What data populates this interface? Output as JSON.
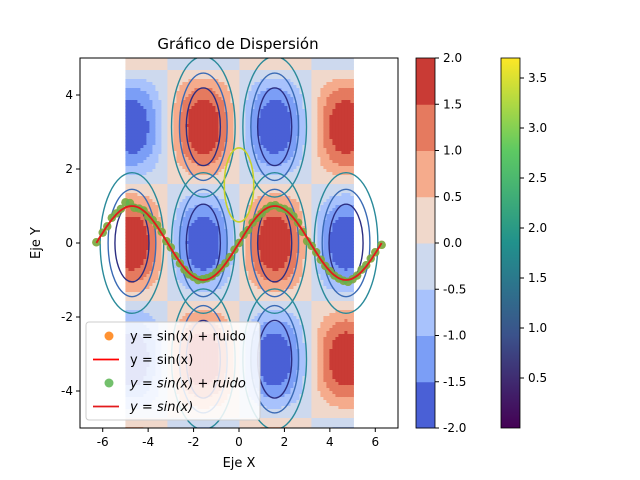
{
  "chart_data": {
    "type": "scatter",
    "title": "Gráfico de Dispersión",
    "xlabel": "Eje X",
    "ylabel": "Eje Y",
    "xlim": [
      -7,
      7
    ],
    "ylim": [
      -5,
      5
    ],
    "x_ticks": [
      -6,
      -4,
      -2,
      0,
      2,
      4,
      6
    ],
    "y_ticks": [
      -4,
      -2,
      0,
      2,
      4
    ],
    "contour_field": "sin(x)*cos(y)*2",
    "contour_x_range": [
      -5,
      5
    ],
    "contour_levels": [
      -2.0,
      -1.5,
      -1.0,
      -0.5,
      0.0,
      0.5,
      1.0,
      1.5,
      2.0
    ],
    "contour_colors": [
      "#4a60d6",
      "#7b9ef6",
      "#a8c2fc",
      "#cdd9ee",
      "#f0d8cb",
      "#f5ab8c",
      "#e57a5f",
      "#c93b35"
    ],
    "colorbar1": {
      "ticks": [
        "-2.0",
        "-1.5",
        "-1.0",
        "-0.5",
        "0.0",
        "0.5",
        "1.0",
        "1.5",
        "2.0"
      ]
    },
    "colorbar2": {
      "range": [
        0,
        3.7
      ],
      "ticks": [
        "0.5",
        "1.0",
        "1.5",
        "2.0",
        "2.5",
        "3.0",
        "3.5"
      ],
      "colors": [
        "#440154",
        "#3b528b",
        "#21918c",
        "#5ec962",
        "#fde725"
      ]
    },
    "series": [
      {
        "name": "y = sin(x) + ruido",
        "kind": "scatter",
        "color": "#ff7f0e",
        "x": [
          -6.28,
          -6.0,
          -5.8,
          -5.6,
          -5.4,
          -5.2,
          -5.0,
          -4.8,
          -4.6,
          -4.4,
          -4.2,
          -4.0,
          -3.8,
          -3.6,
          -3.4,
          -3.2,
          -3.0,
          -2.8,
          -2.6,
          -2.4,
          -2.2,
          -2.0,
          -1.8,
          -1.6,
          -1.4,
          -1.2,
          -1.0,
          -0.8,
          -0.6,
          -0.4,
          -0.2,
          0.0,
          0.2,
          0.4,
          0.6,
          0.8,
          1.0,
          1.2,
          1.4,
          1.6,
          1.8,
          2.0,
          2.2,
          2.4,
          2.6,
          2.8,
          3.0,
          3.2,
          3.4,
          3.6,
          3.8,
          4.0,
          4.2,
          4.4,
          4.6,
          4.8,
          5.0,
          5.2,
          5.4,
          5.6,
          5.8,
          6.0,
          6.28
        ],
        "y": [
          0.02,
          0.28,
          0.45,
          0.68,
          0.8,
          0.92,
          1.1,
          1.08,
          0.95,
          0.93,
          0.88,
          0.72,
          0.62,
          0.48,
          0.3,
          0.05,
          -0.12,
          -0.35,
          -0.55,
          -0.72,
          -0.85,
          -0.92,
          -1.0,
          -0.98,
          -0.95,
          -0.9,
          -0.8,
          -0.68,
          -0.55,
          -0.38,
          -0.18,
          0.0,
          0.22,
          0.35,
          0.55,
          0.68,
          0.8,
          0.92,
          1.0,
          1.02,
          0.95,
          0.92,
          0.85,
          0.72,
          0.55,
          0.3,
          0.05,
          -0.08,
          -0.25,
          -0.45,
          -0.62,
          -0.76,
          -0.88,
          -0.96,
          -1.02,
          -1.05,
          -0.98,
          -0.88,
          -0.72,
          -0.6,
          -0.42,
          -0.25,
          -0.05
        ]
      },
      {
        "name": "y = sin(x)",
        "kind": "line",
        "color": "#ff0000",
        "function": "sin(x)",
        "x_range": [
          -6.28,
          6.28
        ]
      },
      {
        "name": "$y = \\sin(x) + ruido$",
        "kind": "scatter",
        "color": "#5ab552",
        "x": [
          -6.28,
          -6.0,
          -5.8,
          -5.6,
          -5.4,
          -5.2,
          -5.0,
          -4.8,
          -4.6,
          -4.4,
          -4.2,
          -4.0,
          -3.8,
          -3.6,
          -3.4,
          -3.2,
          -3.0,
          -2.8,
          -2.6,
          -2.4,
          -2.2,
          -2.0,
          -1.8,
          -1.6,
          -1.4,
          -1.2,
          -1.0,
          -0.8,
          -0.6,
          -0.4,
          -0.2,
          0.0,
          0.2,
          0.4,
          0.6,
          0.8,
          1.0,
          1.2,
          1.4,
          1.6,
          1.8,
          2.0,
          2.2,
          2.4,
          2.6,
          2.8,
          3.0,
          3.2,
          3.4,
          3.6,
          3.8,
          4.0,
          4.2,
          4.4,
          4.6,
          4.8,
          5.0,
          5.2,
          5.4,
          5.6,
          5.8,
          6.0,
          6.28
        ],
        "y": [
          0.02,
          0.28,
          0.45,
          0.68,
          0.8,
          0.92,
          1.1,
          1.08,
          0.95,
          0.93,
          0.88,
          0.72,
          0.62,
          0.48,
          0.3,
          0.05,
          -0.12,
          -0.35,
          -0.55,
          -0.72,
          -0.85,
          -0.92,
          -1.0,
          -0.98,
          -0.95,
          -0.9,
          -0.8,
          -0.68,
          -0.55,
          -0.38,
          -0.18,
          0.0,
          0.22,
          0.35,
          0.55,
          0.68,
          0.8,
          0.92,
          1.0,
          1.02,
          0.95,
          0.92,
          0.85,
          0.72,
          0.55,
          0.3,
          0.05,
          -0.08,
          -0.25,
          -0.45,
          -0.62,
          -0.76,
          -0.88,
          -0.96,
          -1.02,
          -1.05,
          -0.98,
          -0.88,
          -0.72,
          -0.6,
          -0.42,
          -0.25,
          -0.05
        ]
      },
      {
        "name": "$y = \\sin(x)$",
        "kind": "line",
        "color": "#e31a1c",
        "function": "sin(x)",
        "x_range": [
          -6.28,
          6.28
        ]
      }
    ],
    "legend": {
      "placement": "lower-left",
      "entries": [
        {
          "label": "y = sin(x) + ruido",
          "italic": false
        },
        {
          "label": "y = sin(x)",
          "italic": false
        },
        {
          "label": "y = sin(x) + ruido",
          "italic": true
        },
        {
          "label": "y = sin(x)",
          "italic": true
        }
      ]
    }
  }
}
